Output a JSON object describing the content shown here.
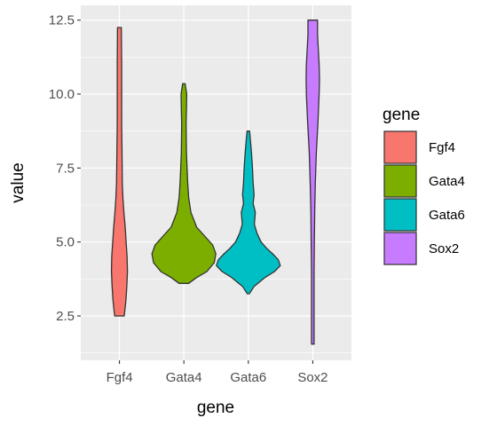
{
  "chart_data": {
    "type": "violin",
    "xlabel": "gene",
    "ylabel": "value",
    "ylim": [
      1.0,
      13.0
    ],
    "yticks": [
      2.5,
      5.0,
      7.5,
      10.0,
      12.5
    ],
    "ytick_labels": [
      "2.5",
      "5.0",
      "7.5",
      "10.0",
      "12.5"
    ],
    "categories": [
      "Fgf4",
      "Gata4",
      "Gata6",
      "Sox2"
    ],
    "legend": {
      "title": "gene",
      "position": "right"
    },
    "grid": true,
    "series": [
      {
        "name": "Fgf4",
        "color": "#F8766D",
        "min": 2.5,
        "max": 12.25,
        "density": [
          [
            2.5,
            0.15
          ],
          [
            3.0,
            0.2
          ],
          [
            3.5,
            0.23
          ],
          [
            4.0,
            0.25
          ],
          [
            4.5,
            0.24
          ],
          [
            5.0,
            0.21
          ],
          [
            5.5,
            0.18
          ],
          [
            6.0,
            0.14
          ],
          [
            6.5,
            0.11
          ],
          [
            7.0,
            0.09
          ],
          [
            8.0,
            0.08
          ],
          [
            9.0,
            0.07
          ],
          [
            10.0,
            0.07
          ],
          [
            11.0,
            0.07
          ],
          [
            12.25,
            0.06
          ]
        ]
      },
      {
        "name": "Gata4",
        "color": "#7CAE00",
        "min": 3.6,
        "max": 10.35,
        "density": [
          [
            3.6,
            0.15
          ],
          [
            3.8,
            0.4
          ],
          [
            4.0,
            0.72
          ],
          [
            4.3,
            0.95
          ],
          [
            4.6,
            1.0
          ],
          [
            4.9,
            0.9
          ],
          [
            5.2,
            0.65
          ],
          [
            5.5,
            0.4
          ],
          [
            6.0,
            0.22
          ],
          [
            6.5,
            0.15
          ],
          [
            7.0,
            0.12
          ],
          [
            7.5,
            0.1
          ],
          [
            8.0,
            0.08
          ],
          [
            9.0,
            0.07
          ],
          [
            9.5,
            0.08
          ],
          [
            10.0,
            0.09
          ],
          [
            10.35,
            0.04
          ]
        ]
      },
      {
        "name": "Gata6",
        "color": "#00BFC4",
        "min": 3.25,
        "max": 8.75,
        "density": [
          [
            3.25,
            0.03
          ],
          [
            3.5,
            0.18
          ],
          [
            3.8,
            0.52
          ],
          [
            4.0,
            0.82
          ],
          [
            4.2,
            1.0
          ],
          [
            4.4,
            0.94
          ],
          [
            4.6,
            0.76
          ],
          [
            4.8,
            0.56
          ],
          [
            5.0,
            0.4
          ],
          [
            5.3,
            0.27
          ],
          [
            5.6,
            0.19
          ],
          [
            6.0,
            0.22
          ],
          [
            6.3,
            0.15
          ],
          [
            6.6,
            0.18
          ],
          [
            7.0,
            0.15
          ],
          [
            7.5,
            0.13
          ],
          [
            8.0,
            0.1
          ],
          [
            8.5,
            0.06
          ],
          [
            8.75,
            0.04
          ]
        ]
      },
      {
        "name": "Sox2",
        "color": "#C77CFF",
        "min": 1.55,
        "max": 12.5,
        "density": [
          [
            1.55,
            0.04
          ],
          [
            3.0,
            0.04
          ],
          [
            4.0,
            0.04
          ],
          [
            5.0,
            0.05
          ],
          [
            6.0,
            0.06
          ],
          [
            7.0,
            0.08
          ],
          [
            8.0,
            0.11
          ],
          [
            9.0,
            0.16
          ],
          [
            10.0,
            0.2
          ],
          [
            10.5,
            0.21
          ],
          [
            11.0,
            0.2
          ],
          [
            12.0,
            0.15
          ],
          [
            12.5,
            0.15
          ]
        ]
      }
    ]
  }
}
